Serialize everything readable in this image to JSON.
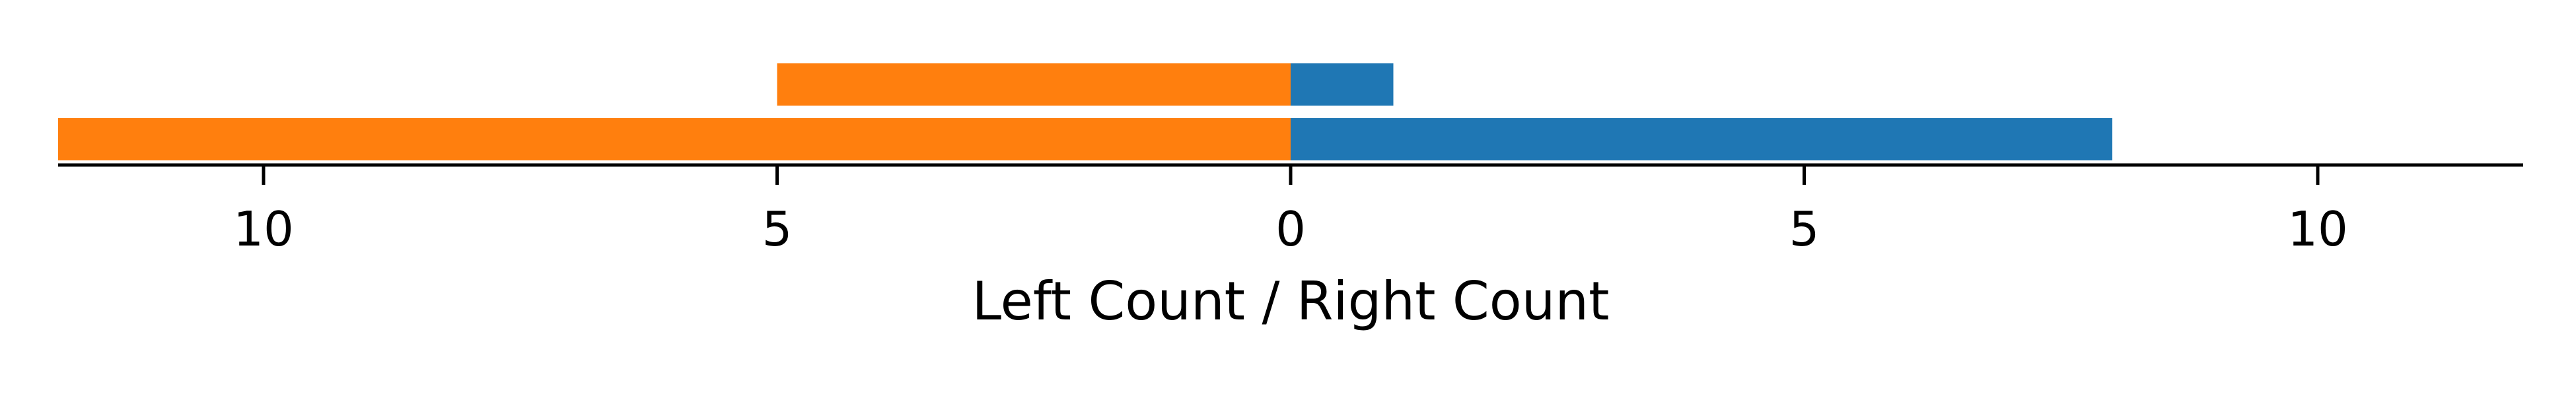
{
  "chart_data": {
    "type": "bar",
    "orientation": "horizontal",
    "layout": "diverging",
    "xlabel": "Left Count / Right Count",
    "xlim": [
      -12,
      12
    ],
    "xticks": [
      -10,
      -5,
      0,
      5,
      10
    ],
    "xtick_labels": [
      "10",
      "5",
      "0",
      "5",
      "10"
    ],
    "grid": false,
    "legend": "none",
    "rows": [
      {
        "left": 12,
        "right": 8
      },
      {
        "left": 5,
        "right": 1
      }
    ],
    "colors": {
      "left": "#ff7f0e",
      "right": "#1f77b4",
      "axis": "#000000"
    }
  }
}
